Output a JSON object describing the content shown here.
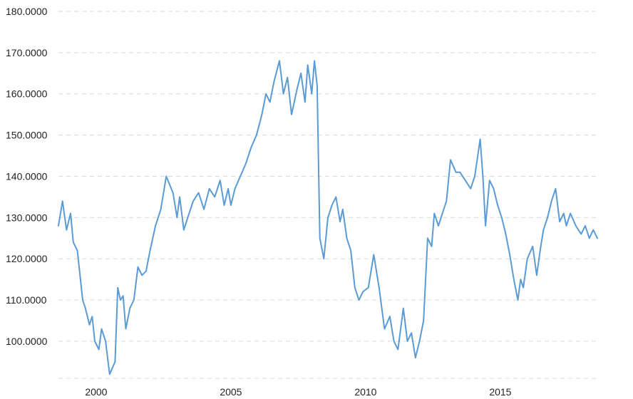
{
  "chart_data": {
    "type": "line",
    "title": "",
    "xlabel": "",
    "ylabel": "",
    "xlim": [
      1998.6,
      2018.6
    ],
    "ylim": [
      91,
      180
    ],
    "grid": true,
    "legend": "none",
    "y_ticks": [
      "180.0000",
      "170.0000",
      "160.0000",
      "150.0000",
      "140.0000",
      "130.0000",
      "120.0000",
      "110.0000",
      "100.0000"
    ],
    "y_tick_values": [
      180,
      170,
      160,
      150,
      140,
      130,
      120,
      110,
      100
    ],
    "x_ticks": [
      "2000",
      "2005",
      "2010",
      "2015"
    ],
    "x_tick_values": [
      2000,
      2005,
      2010,
      2015
    ],
    "series": [
      {
        "color": "#5b9bd5",
        "x": [
          1998.6,
          1998.75,
          1998.9,
          1999.05,
          1999.15,
          1999.3,
          1999.5,
          1999.6,
          1999.75,
          1999.85,
          1999.95,
          2000.1,
          2000.2,
          2000.35,
          2000.5,
          2000.7,
          2000.8,
          2000.9,
          2001.0,
          2001.1,
          2001.25,
          2001.4,
          2001.55,
          2001.7,
          2001.85,
          2002.0,
          2002.2,
          2002.4,
          2002.6,
          2002.85,
          2003.0,
          2003.1,
          2003.25,
          2003.45,
          2003.6,
          2003.8,
          2004.0,
          2004.2,
          2004.4,
          2004.6,
          2004.75,
          2004.9,
          2005.0,
          2005.15,
          2005.35,
          2005.55,
          2005.75,
          2005.95,
          2006.15,
          2006.3,
          2006.45,
          2006.6,
          2006.8,
          2006.95,
          2007.1,
          2007.25,
          2007.45,
          2007.6,
          2007.75,
          2007.85,
          2008.0,
          2008.1,
          2008.2,
          2008.3,
          2008.45,
          2008.6,
          2008.75,
          2008.9,
          2009.05,
          2009.15,
          2009.3,
          2009.45,
          2009.6,
          2009.75,
          2009.9,
          2010.1,
          2010.3,
          2010.5,
          2010.7,
          2010.9,
          2011.05,
          2011.2,
          2011.4,
          2011.55,
          2011.7,
          2011.85,
          2012.0,
          2012.15,
          2012.3,
          2012.45,
          2012.55,
          2012.7,
          2012.85,
          2013.0,
          2013.15,
          2013.35,
          2013.5,
          2013.7,
          2013.9,
          2014.05,
          2014.25,
          2014.35,
          2014.45,
          2014.6,
          2014.75,
          2014.9,
          2015.05,
          2015.2,
          2015.35,
          2015.5,
          2015.65,
          2015.75,
          2015.85,
          2016.0,
          2016.2,
          2016.35,
          2016.5,
          2016.6,
          2016.75,
          2016.9,
          2017.05,
          2017.2,
          2017.35,
          2017.45,
          2017.6,
          2017.8,
          2018.0,
          2018.15,
          2018.3,
          2018.45,
          2018.6
        ],
        "values": [
          128,
          134,
          127,
          131,
          124,
          122,
          110,
          108,
          104,
          106,
          100,
          98,
          103,
          100,
          92,
          95,
          113,
          110,
          111,
          103,
          108,
          110,
          118,
          116,
          117,
          122,
          128,
          132,
          140,
          136,
          130,
          135,
          127,
          131,
          134,
          136,
          132,
          137,
          135,
          139,
          133,
          137,
          133,
          137,
          140,
          143,
          147,
          150,
          155,
          160,
          158,
          163,
          168,
          160,
          164,
          155,
          161,
          165,
          158,
          167,
          160,
          168,
          162,
          125,
          120,
          130,
          133,
          135,
          129,
          132,
          125,
          122,
          113,
          110,
          112,
          113,
          121,
          113,
          103,
          106,
          100,
          98,
          108,
          100,
          102,
          96,
          100,
          105,
          125,
          123,
          131,
          128,
          131,
          134,
          144,
          141,
          141,
          139,
          137,
          140,
          149,
          140,
          128,
          139,
          137,
          133,
          130,
          126,
          121,
          115,
          110,
          115,
          113,
          120,
          123,
          116,
          123,
          127,
          130,
          134,
          137,
          129,
          131,
          128,
          131,
          128,
          126,
          128,
          125,
          127,
          125
        ]
      }
    ]
  }
}
